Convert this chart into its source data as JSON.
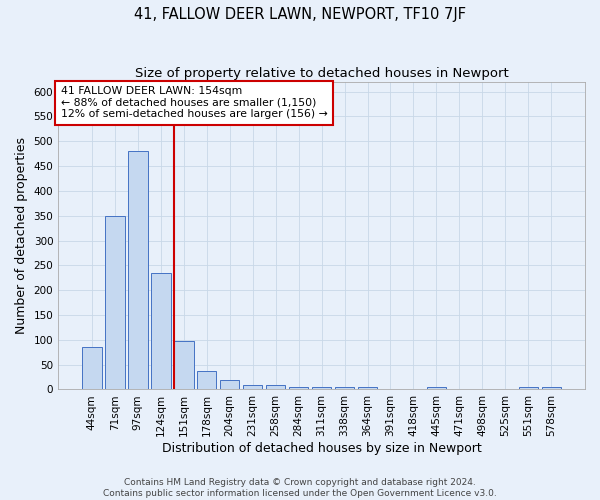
{
  "title": "41, FALLOW DEER LAWN, NEWPORT, TF10 7JF",
  "subtitle": "Size of property relative to detached houses in Newport",
  "xlabel": "Distribution of detached houses by size in Newport",
  "ylabel": "Number of detached properties",
  "footer_line1": "Contains HM Land Registry data © Crown copyright and database right 2024.",
  "footer_line2": "Contains public sector information licensed under the Open Government Licence v3.0.",
  "bar_labels": [
    "44sqm",
    "71sqm",
    "97sqm",
    "124sqm",
    "151sqm",
    "178sqm",
    "204sqm",
    "231sqm",
    "258sqm",
    "284sqm",
    "311sqm",
    "338sqm",
    "364sqm",
    "391sqm",
    "418sqm",
    "445sqm",
    "471sqm",
    "498sqm",
    "525sqm",
    "551sqm",
    "578sqm"
  ],
  "bar_values": [
    85,
    350,
    480,
    235,
    98,
    38,
    20,
    8,
    8,
    5,
    5,
    5,
    5,
    0,
    0,
    5,
    0,
    0,
    0,
    5,
    5
  ],
  "bar_color": "#c5d8f0",
  "bar_edge_color": "#4472c4",
  "vline_bin_index": 4,
  "vline_color": "#cc0000",
  "annotation_text_line1": "41 FALLOW DEER LAWN: 154sqm",
  "annotation_text_line2": "← 88% of detached houses are smaller (1,150)",
  "annotation_text_line3": "12% of semi-detached houses are larger (156) →",
  "annotation_box_facecolor": "#ffffff",
  "annotation_box_edgecolor": "#cc0000",
  "ylim": [
    0,
    620
  ],
  "yticks": [
    0,
    50,
    100,
    150,
    200,
    250,
    300,
    350,
    400,
    450,
    500,
    550,
    600
  ],
  "grid_color": "#c8d8e8",
  "bg_color": "#e8f0fa",
  "title_fontsize": 10.5,
  "subtitle_fontsize": 9.5,
  "axis_label_fontsize": 9,
  "tick_fontsize": 7.5,
  "footer_fontsize": 6.5
}
